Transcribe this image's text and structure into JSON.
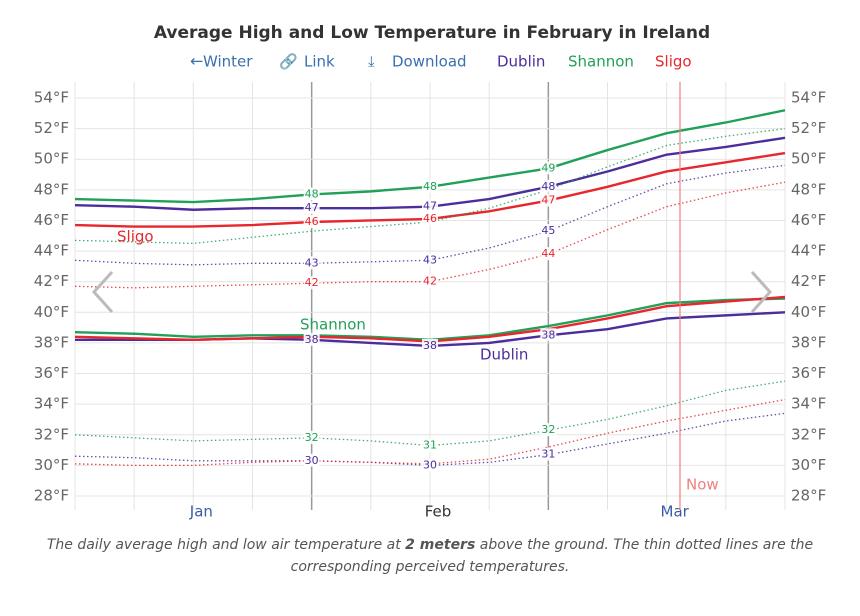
{
  "chart_data": {
    "type": "line",
    "title": "Average High and Low Temperature in February in Ireland",
    "nav": [
      "Winter",
      "Link",
      "Download"
    ],
    "categories": [
      null,
      null,
      "Jan",
      null,
      null,
      null,
      "Feb",
      null,
      null,
      null,
      "Mar",
      null,
      null
    ],
    "ylim": [
      28,
      54
    ],
    "yticks": [
      {
        "value": 28,
        "label": "28°F"
      },
      {
        "value": 30,
        "label": "30°F"
      },
      {
        "value": 32,
        "label": "32°F"
      },
      {
        "value": 34,
        "label": "34°F"
      },
      {
        "value": 36,
        "label": "36°F"
      },
      {
        "value": 38,
        "label": "38°F"
      },
      {
        "value": 40,
        "label": "40°F"
      },
      {
        "value": 42,
        "label": "42°F"
      },
      {
        "value": 44,
        "label": "44°F"
      },
      {
        "value": 46,
        "label": "46°F"
      },
      {
        "value": 48,
        "label": "48°F"
      },
      {
        "value": 50,
        "label": "50°F"
      },
      {
        "value": 52,
        "label": "52°F"
      },
      {
        "value": 54,
        "label": "54°F"
      }
    ],
    "grid": true,
    "now_label": "Now",
    "series": [
      {
        "name": "Dublin",
        "color": "#4b2e9b",
        "style": "solid",
        "values": [
          47.0,
          46.9,
          46.7,
          46.8,
          46.8,
          46.8,
          46.9,
          47.4,
          48.2,
          49.2,
          50.3,
          50.8,
          51.4
        ],
        "value_labels": [
          null,
          null,
          null,
          null,
          "47",
          null,
          "47",
          null,
          "48",
          null,
          null,
          null,
          null
        ]
      },
      {
        "name": "Shannon",
        "color": "#22a05a",
        "style": "solid",
        "values": [
          47.4,
          47.3,
          47.2,
          47.4,
          47.7,
          47.9,
          48.2,
          48.8,
          49.4,
          50.6,
          51.7,
          52.4,
          53.2
        ],
        "value_labels": [
          null,
          null,
          null,
          null,
          "48",
          null,
          "48",
          null,
          "49",
          null,
          null,
          null,
          null
        ]
      },
      {
        "name": "Sligo",
        "color": "#e8262e",
        "style": "solid",
        "values": [
          45.7,
          45.6,
          45.6,
          45.7,
          45.9,
          46.0,
          46.1,
          46.6,
          47.3,
          48.2,
          49.2,
          49.8,
          50.4
        ],
        "value_labels": [
          null,
          null,
          null,
          null,
          "46",
          null,
          "46",
          null,
          "47",
          null,
          null,
          null,
          null
        ]
      },
      {
        "name": "Dublin",
        "color": "#4b2e9b",
        "style": "solid",
        "values": [
          38.2,
          38.2,
          38.2,
          38.3,
          38.2,
          38.0,
          37.8,
          38.0,
          38.5,
          38.9,
          39.6,
          39.8,
          40.0
        ],
        "value_labels": [
          null,
          null,
          null,
          null,
          "38",
          null,
          "38",
          null,
          "38",
          null,
          null,
          null,
          null
        ]
      },
      {
        "name": "Shannon",
        "color": "#22a05a",
        "style": "solid",
        "values": [
          38.7,
          38.6,
          38.4,
          38.5,
          38.5,
          38.4,
          38.2,
          38.5,
          39.1,
          39.8,
          40.6,
          40.8,
          40.9
        ]
      },
      {
        "name": "Sligo",
        "color": "#e8262e",
        "style": "solid",
        "values": [
          38.4,
          38.3,
          38.2,
          38.3,
          38.4,
          38.3,
          38.1,
          38.4,
          38.9,
          39.6,
          40.4,
          40.7,
          41.0
        ]
      },
      {
        "name": "Dublin",
        "color": "#4b2e9b",
        "style": "dotted",
        "values": [
          43.4,
          43.2,
          43.1,
          43.2,
          43.2,
          43.3,
          43.4,
          44.2,
          45.3,
          46.9,
          48.4,
          49.1,
          49.6
        ],
        "value_labels": [
          null,
          null,
          null,
          null,
          "43",
          null,
          "43",
          null,
          "45",
          null,
          null,
          null,
          null
        ]
      },
      {
        "name": "Shannon",
        "color": "#22a05a",
        "style": "dotted",
        "values": [
          44.7,
          44.6,
          44.5,
          44.9,
          45.3,
          45.6,
          45.9,
          46.8,
          48.0,
          49.5,
          50.9,
          51.5,
          52.0
        ]
      },
      {
        "name": "Sligo",
        "color": "#e8262e",
        "style": "dotted",
        "values": [
          41.7,
          41.6,
          41.7,
          41.8,
          41.9,
          42.0,
          42.0,
          42.8,
          43.8,
          45.4,
          46.9,
          47.8,
          48.5
        ],
        "value_labels": [
          null,
          null,
          null,
          null,
          "42",
          null,
          "42",
          null,
          "44",
          null,
          null,
          null,
          null
        ]
      },
      {
        "name": "Dublin",
        "color": "#4b2e9b",
        "style": "dotted",
        "values": [
          30.6,
          30.5,
          30.3,
          30.3,
          30.3,
          30.2,
          30.0,
          30.2,
          30.7,
          31.4,
          32.1,
          32.9,
          33.4
        ],
        "value_labels": [
          null,
          null,
          null,
          null,
          "30",
          null,
          "30",
          null,
          "31",
          null,
          null,
          null,
          null
        ]
      },
      {
        "name": "Shannon",
        "color": "#22a05a",
        "style": "dotted",
        "values": [
          32.0,
          31.8,
          31.6,
          31.7,
          31.8,
          31.6,
          31.3,
          31.6,
          32.3,
          33.0,
          33.9,
          34.9,
          35.5
        ],
        "value_labels": [
          null,
          null,
          null,
          null,
          "32",
          null,
          "31",
          null,
          "32",
          null,
          null,
          null,
          null
        ]
      },
      {
        "name": "Sligo",
        "color": "#e8262e",
        "style": "dotted",
        "values": [
          30.1,
          30.0,
          30.0,
          30.2,
          30.3,
          30.2,
          30.1,
          30.4,
          31.2,
          32.1,
          32.9,
          33.6,
          34.3
        ]
      }
    ],
    "caption": [
      "The daily average high and low air temperature at ",
      "2 meters",
      " above the ground. The thin dotted lines are the corresponding perceived temperatures."
    ]
  }
}
